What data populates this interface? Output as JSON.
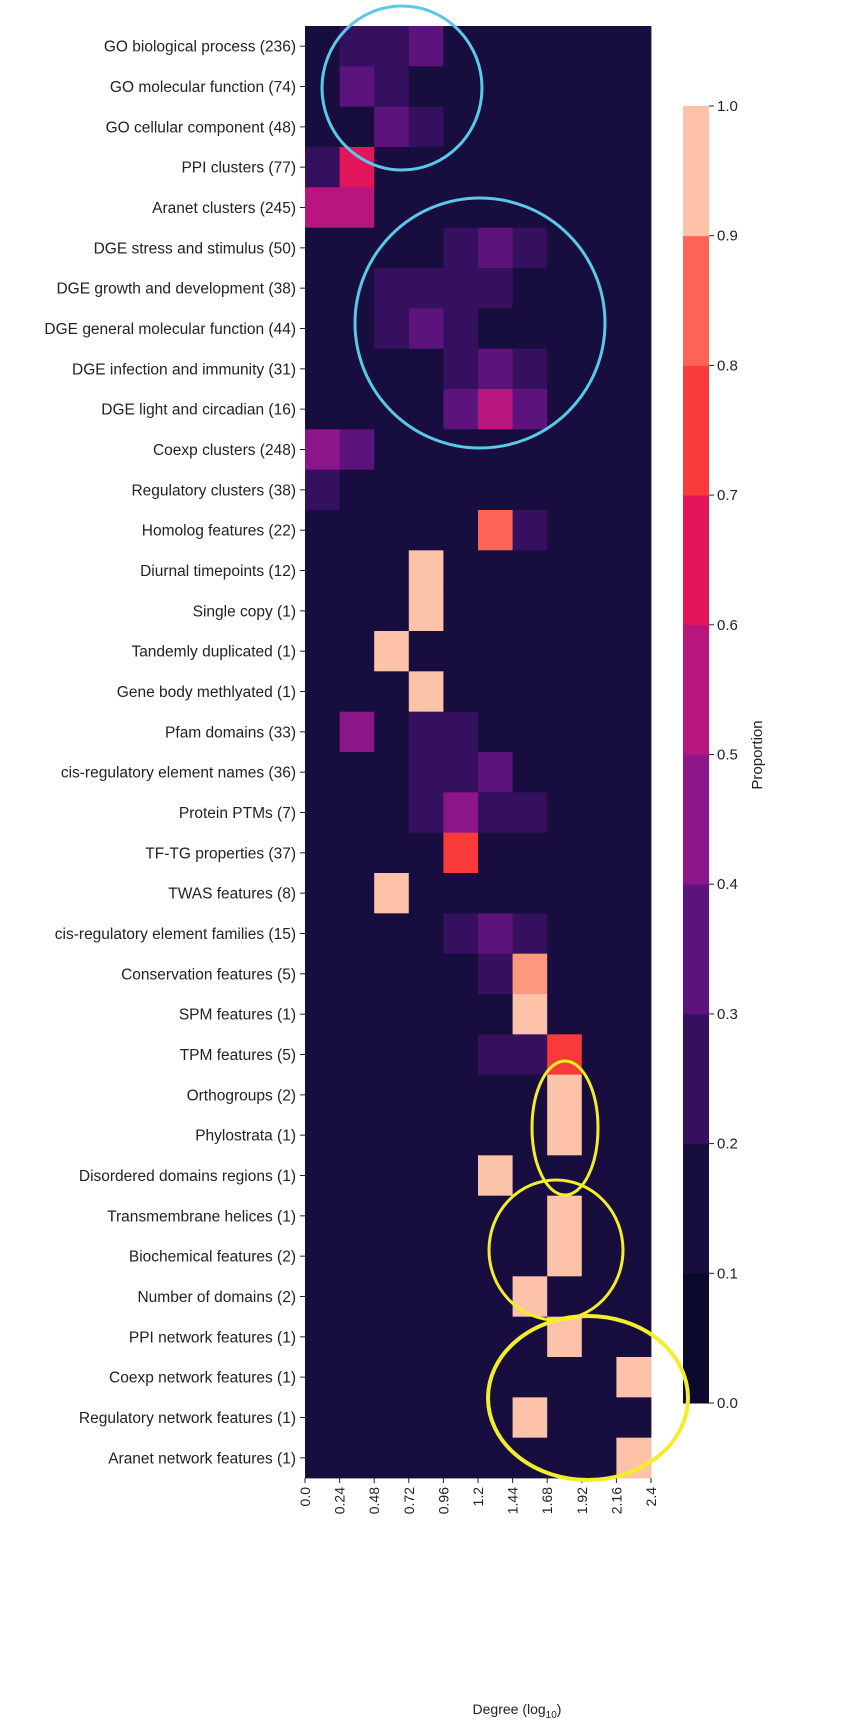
{
  "chart_data": {
    "type": "heatmap",
    "xlabel": "Degree (log",
    "xlabel_subscript": "10",
    "xlabel_suffix": ")",
    "x_ticks": [
      "0.0",
      "0.24",
      "0.48",
      "0.72",
      "0.96",
      "1.2",
      "1.44",
      "1.68",
      "1.92",
      "2.16",
      "2.4"
    ],
    "x_range": [
      0.0,
      2.4
    ],
    "rows": [
      "GO biological process (236)",
      "GO molecular function (74)",
      "GO cellular component (48)",
      "PPI clusters (77)",
      "Aranet clusters (245)",
      "DGE stress and stimulus (50)",
      "DGE growth and development (38)",
      "DGE general molecular function (44)",
      "DGE infection and immunity (31)",
      "DGE light and circadian (16)",
      "Coexp clusters (248)",
      "Regulatory clusters (38)",
      "Homolog features (22)",
      "Diurnal timepoints (12)",
      "Single copy (1)",
      "Tandemly duplicated (1)",
      "Gene body methlyated (1)",
      "Pfam domains (33)",
      "cis-regulatory element names (36)",
      "Protein PTMs (7)",
      "TF-TG properties (37)",
      "TWAS features (8)",
      "cis-regulatory element families (15)",
      "Conservation features (5)",
      "SPM features (1)",
      "TPM features (5)",
      "Orthogroups (2)",
      "Phylostrata (1)",
      "Disordered domains regions (1)",
      "Transmembrane helices (1)",
      "Biochemical features (2)",
      "Number of domains (2)",
      "PPI network features (1)",
      "Coexp network features (1)",
      "Regulatory network features (1)",
      "Aranet network features (1)"
    ],
    "values": [
      [
        0.05,
        0.22,
        0.22,
        0.33,
        0.12,
        0.05,
        0.05,
        0.05,
        0.05,
        0.05
      ],
      [
        0.05,
        0.32,
        0.18,
        0.12,
        0.05,
        0.05,
        0.05,
        0.05,
        0.05,
        0.05
      ],
      [
        0.05,
        0.12,
        0.3,
        0.22,
        0.05,
        0.12,
        0.05,
        0.05,
        0.05,
        0.05
      ],
      [
        0.22,
        0.55,
        0.12,
        0.05,
        0.05,
        0.05,
        0.05,
        0.05,
        0.05,
        0.05
      ],
      [
        0.45,
        0.45,
        0.05,
        0.05,
        0.05,
        0.05,
        0.05,
        0.05,
        0.05,
        0.05
      ],
      [
        0.05,
        0.05,
        0.05,
        0.12,
        0.2,
        0.28,
        0.2,
        0.05,
        0.05,
        0.05
      ],
      [
        0.05,
        0.12,
        0.2,
        0.2,
        0.2,
        0.15,
        0.05,
        0.05,
        0.05,
        0.05
      ],
      [
        0.05,
        0.05,
        0.15,
        0.3,
        0.18,
        0.12,
        0.05,
        0.05,
        0.05,
        0.05
      ],
      [
        0.05,
        0.05,
        0.05,
        0.05,
        0.15,
        0.32,
        0.22,
        0.05,
        0.05,
        0.05
      ],
      [
        0.05,
        0.05,
        0.05,
        0.05,
        0.25,
        0.45,
        0.3,
        0.05,
        0.05,
        0.05
      ],
      [
        0.4,
        0.32,
        0.05,
        0.05,
        0.05,
        0.05,
        0.05,
        0.05,
        0.05,
        0.05
      ],
      [
        0.22,
        0.12,
        0.05,
        0.12,
        0.12,
        0.12,
        0.05,
        0.05,
        0.05,
        0.05
      ],
      [
        0.05,
        0.05,
        0.05,
        0.05,
        0.05,
        0.75,
        0.22,
        0.05,
        0.05,
        0.05
      ],
      [
        0.05,
        0.05,
        0.05,
        1.0,
        0.05,
        0.05,
        0.05,
        0.05,
        0.05,
        0.05
      ],
      [
        0.05,
        0.05,
        0.05,
        1.0,
        0.05,
        0.05,
        0.05,
        0.05,
        0.05,
        0.05
      ],
      [
        0.05,
        0.05,
        1.0,
        0.05,
        0.05,
        0.05,
        0.05,
        0.05,
        0.05,
        0.05
      ],
      [
        0.05,
        0.05,
        0.05,
        1.0,
        0.05,
        0.05,
        0.05,
        0.05,
        0.05,
        0.05
      ],
      [
        0.05,
        0.38,
        0.05,
        0.15,
        0.15,
        0.05,
        0.05,
        0.05,
        0.05,
        0.05
      ],
      [
        0.05,
        0.12,
        0.05,
        0.15,
        0.15,
        0.28,
        0.05,
        0.05,
        0.05,
        0.05
      ],
      [
        0.05,
        0.05,
        0.05,
        0.15,
        0.35,
        0.22,
        0.15,
        0.05,
        0.05,
        0.05
      ],
      [
        0.05,
        0.05,
        0.05,
        0.12,
        0.65,
        0.05,
        0.12,
        0.05,
        0.05,
        0.05
      ],
      [
        0.05,
        0.05,
        1.0,
        0.05,
        0.05,
        0.05,
        0.05,
        0.05,
        0.05,
        0.05
      ],
      [
        0.05,
        0.05,
        0.05,
        0.12,
        0.22,
        0.3,
        0.22,
        0.05,
        0.05,
        0.05
      ],
      [
        0.05,
        0.05,
        0.05,
        0.05,
        0.05,
        0.2,
        0.85,
        0.05,
        0.05,
        0.05
      ],
      [
        0.05,
        0.05,
        0.05,
        0.05,
        0.05,
        0.05,
        1.0,
        0.05,
        0.05,
        0.05
      ],
      [
        0.05,
        0.05,
        0.05,
        0.05,
        0.05,
        0.22,
        0.22,
        0.65,
        0.05,
        0.05
      ],
      [
        0.05,
        0.05,
        0.05,
        0.05,
        0.05,
        0.05,
        0.05,
        1.0,
        0.05,
        0.05
      ],
      [
        0.05,
        0.05,
        0.05,
        0.05,
        0.05,
        0.05,
        0.05,
        1.0,
        0.05,
        0.05
      ],
      [
        0.05,
        0.05,
        0.05,
        0.05,
        0.05,
        1.0,
        0.05,
        0.05,
        0.05,
        0.05
      ],
      [
        0.05,
        0.05,
        0.05,
        0.05,
        0.05,
        0.05,
        0.05,
        1.0,
        0.05,
        0.05
      ],
      [
        0.05,
        0.05,
        0.05,
        0.05,
        0.05,
        0.05,
        0.05,
        1.0,
        0.05,
        0.05
      ],
      [
        0.05,
        0.05,
        0.05,
        0.05,
        0.05,
        0.05,
        1.0,
        0.05,
        0.05,
        0.05
      ],
      [
        0.05,
        0.05,
        0.05,
        0.05,
        0.05,
        0.05,
        0.05,
        1.0,
        0.05,
        0.05
      ],
      [
        0.05,
        0.05,
        0.05,
        0.05,
        0.05,
        0.05,
        0.05,
        0.05,
        0.05,
        1.0
      ],
      [
        0.05,
        0.05,
        0.05,
        0.05,
        0.05,
        0.05,
        1.0,
        0.05,
        0.05,
        0.05
      ],
      [
        0.05,
        0.05,
        0.05,
        0.05,
        0.05,
        0.05,
        0.05,
        0.05,
        0.05,
        1.0
      ]
    ],
    "colorbar": {
      "title": "Proportion",
      "ticks": [
        "0.0",
        "0.1",
        "0.2",
        "0.3",
        "0.4",
        "0.5",
        "0.6",
        "0.7",
        "0.8",
        "0.9",
        "1.0"
      ],
      "range": [
        0.0,
        1.0
      ],
      "colors": [
        "#0b0a2c",
        "#170d3f",
        "#34105f",
        "#5d137c",
        "#8b1589",
        "#b9157e",
        "#e3155a",
        "#fa3a3a",
        "#fd6456",
        "#fd9a7e",
        "#fcc3a8"
      ]
    },
    "annotations": [
      {
        "shape": "ellipse",
        "color": "#5bc8e8",
        "description": "highlight GO rows"
      },
      {
        "shape": "ellipse",
        "color": "#5bc8e8",
        "description": "highlight DGE rows"
      },
      {
        "shape": "ellipse",
        "color": "#f2ee2c",
        "description": "highlight Orthogroups/Phylostrata"
      },
      {
        "shape": "ellipse",
        "color": "#f2ee2c",
        "description": "highlight Transmembrane/Biochemical/Number of domains"
      },
      {
        "shape": "ellipse",
        "color": "#f2ee2c",
        "description": "highlight network features"
      }
    ]
  }
}
